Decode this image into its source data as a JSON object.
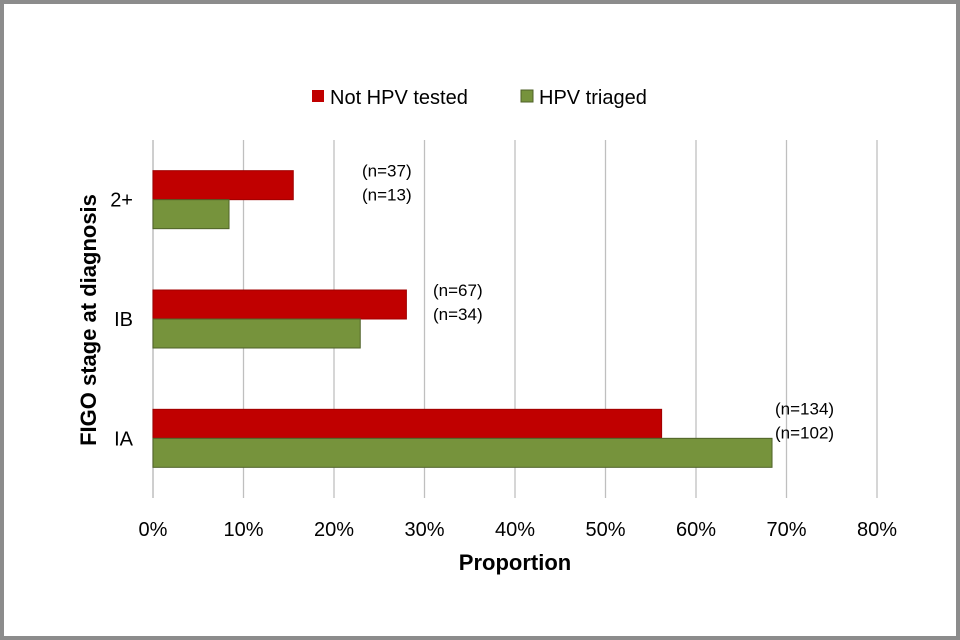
{
  "chart_data": {
    "type": "bar",
    "orientation": "horizontal",
    "title": "",
    "xlabel": "Proportion",
    "ylabel": "FIGO stage at diagnosis",
    "xlim": [
      0,
      0.8
    ],
    "x_ticks": [
      0,
      0.1,
      0.2,
      0.3,
      0.4,
      0.5,
      0.6,
      0.7,
      0.8
    ],
    "x_tick_labels": [
      "0%",
      "10%",
      "20%",
      "30%",
      "40%",
      "50%",
      "60%",
      "70%",
      "80%"
    ],
    "categories": [
      "2+",
      "IB",
      "IA"
    ],
    "series": [
      {
        "name": "Not HPV tested",
        "color": "#c00000",
        "values": [
          0.155,
          0.28,
          0.562
        ],
        "labels": [
          "(n=37)",
          "(n=67)",
          "(n=134)"
        ]
      },
      {
        "name": "HPV triaged",
        "color": "#76933c",
        "values": [
          0.084,
          0.229,
          0.684
        ],
        "labels": [
          "(n=13)",
          "(n=34)",
          "(n=102)"
        ]
      }
    ],
    "grid": true,
    "legend_position": "top-center"
  }
}
